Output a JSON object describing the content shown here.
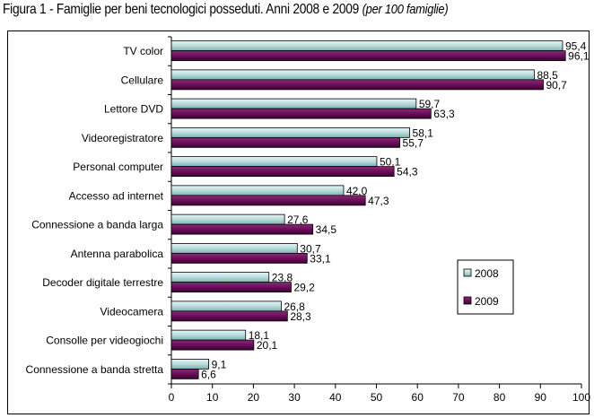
{
  "chart_data": {
    "type": "bar",
    "orientation": "horizontal",
    "title": "Figura 1 - Famiglie per beni tecnologici posseduti. Anni 2008 e 2009",
    "subtitle": "(per 100 famiglie)",
    "categories": [
      "TV color",
      "Cellulare",
      "Lettore DVD",
      "Videoregistratore",
      "Personal computer",
      "Accesso ad internet",
      "Connessione a banda larga",
      "Antenna parabolica",
      "Decoder digitale terrestre",
      "Videocamera",
      "Consolle per videogiochi",
      "Connessione a banda stretta"
    ],
    "series": [
      {
        "name": "2008",
        "color": "#b7dcdc",
        "values": [
          95.4,
          88.5,
          59.7,
          58.1,
          50.1,
          42.0,
          27.6,
          30.7,
          23.8,
          26.8,
          18.1,
          9.1
        ],
        "labels": [
          "95,4",
          "88,5",
          "59,7",
          "58,1",
          "50,1",
          "42,0",
          "27,6",
          "30,7",
          "23,8",
          "26,8",
          "18,1",
          "9,1"
        ]
      },
      {
        "name": "2009",
        "color": "#6b0f5a",
        "values": [
          96.1,
          90.7,
          63.3,
          55.7,
          54.3,
          47.3,
          34.5,
          33.1,
          29.2,
          28.3,
          20.1,
          6.6
        ],
        "labels": [
          "96,1",
          "90,7",
          "63,3",
          "55,7",
          "54,3",
          "47,3",
          "34,5",
          "33,1",
          "29,2",
          "28,3",
          "20,1",
          "6,6"
        ]
      }
    ],
    "xlim": [
      0,
      100
    ],
    "xticks": [
      "0",
      "10",
      "20",
      "30",
      "40",
      "50",
      "60",
      "70",
      "80",
      "90",
      "100"
    ],
    "grid": false,
    "legend_position": "right"
  }
}
